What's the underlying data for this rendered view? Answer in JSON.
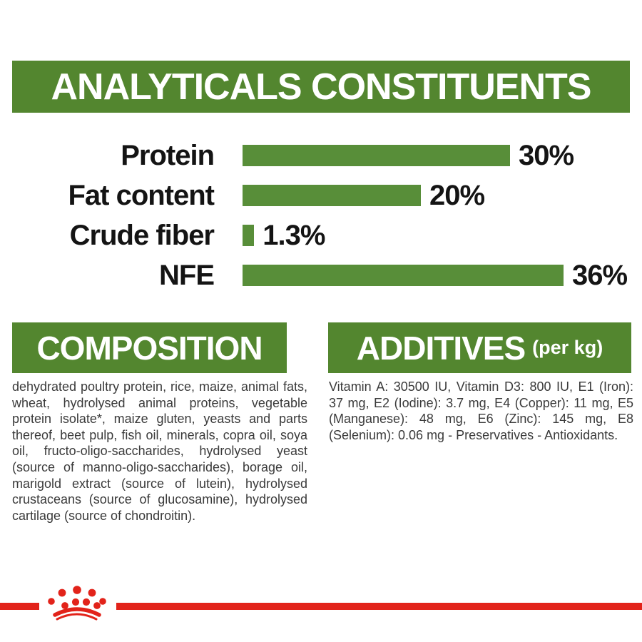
{
  "colors": {
    "banner_green": "#53862f",
    "bar_green": "#588e39",
    "brand_red": "#e2231a",
    "chart_text": "#141414",
    "body_text": "#3a3a3a"
  },
  "analyticals": {
    "title": "ANALYTICALS CONSTITUENTS"
  },
  "chart_data": {
    "type": "bar",
    "orientation": "horizontal",
    "title": "ANALYTICALS CONSTITUENTS",
    "categories": [
      "Protein",
      "Fat content",
      "Crude fiber",
      "NFE"
    ],
    "values": [
      30,
      20,
      1.3,
      36
    ],
    "value_labels": [
      "30%",
      "20%",
      "1.3%",
      "36%"
    ],
    "unit": "%",
    "xlim": [
      0,
      40
    ],
    "grid": false,
    "legend": false,
    "bar_color": "#588e39"
  },
  "composition": {
    "title": "COMPOSITION",
    "text": "dehydrated poultry protein, rice, maize, animal fats, wheat, hydrolysed animal proteins, vegetable protein isolate*, maize gluten, yeasts and parts thereof, beet pulp, fish oil, minerals, copra oil, soya oil, fructo-oligo-saccharides, hydrolysed yeast (source of manno-oligo-saccharides), borage oil, marigold extract (source of lutein), hydrolysed crustaceans (source of glucosamine), hydrolysed cartilage (source of chondroitin)."
  },
  "additives": {
    "title": "ADDITIVES",
    "title_suffix": "(per kg)",
    "text": "Vitamin A: 30500 IU, Vitamin D3: 800 IU, E1 (Iron): 37 mg, E2 (Iodine): 3.7 mg, E4 (Copper): 11 mg, E5 (Manganese): 48 mg, E6 (Zinc): 145 mg, E8 (Selenium): 0.06 mg - Preservatives - Antioxidants."
  },
  "footer": {
    "logo_icon": "royal-canin-crown-logo",
    "stripe_color": "#e2231a"
  }
}
